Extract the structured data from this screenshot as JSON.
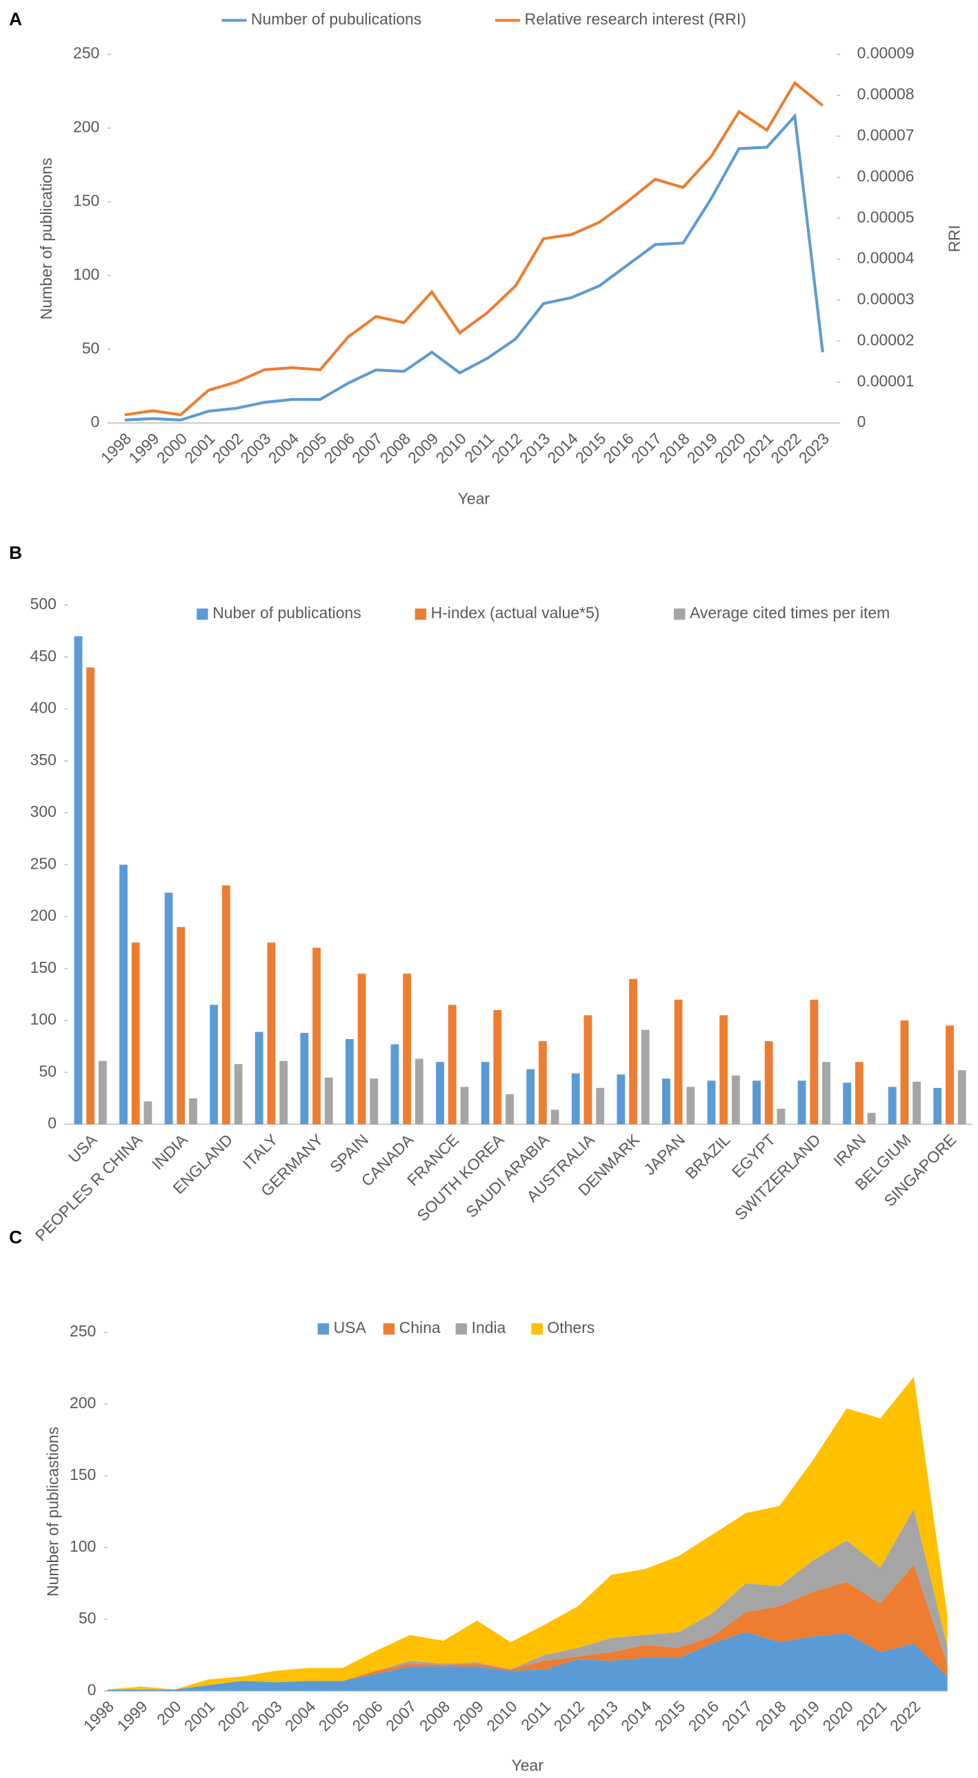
{
  "chart_data": [
    {
      "type": "line",
      "panel": "A",
      "xlabel": "Year",
      "ylabel": "Number of publications",
      "y2label": "RRI",
      "categories": [
        "1998",
        "1999",
        "2000",
        "2001",
        "2002",
        "2003",
        "2004",
        "2005",
        "2006",
        "2007",
        "2008",
        "2009",
        "2010",
        "2011",
        "2012",
        "2013",
        "2014",
        "2015",
        "2016",
        "2017",
        "2018",
        "2019",
        "2020",
        "2021",
        "2022",
        "2023"
      ],
      "series": [
        {
          "name": "Number of pubulications",
          "color": "#5b9bd5",
          "values": [
            2,
            3,
            2,
            8,
            10,
            14,
            16,
            16,
            27,
            36,
            35,
            48,
            34,
            44,
            57,
            81,
            85,
            93,
            107,
            121,
            122,
            152,
            186,
            187,
            208,
            48
          ]
        },
        {
          "name": "Relative research interest (RRI)",
          "color": "#ed7d31",
          "axis": "y2",
          "values": [
            2e-06,
            3e-06,
            2e-06,
            8e-06,
            1e-05,
            1.3e-05,
            1.35e-05,
            1.3e-05,
            2.1e-05,
            2.6e-05,
            2.45e-05,
            3.2e-05,
            2.2e-05,
            2.7e-05,
            3.35e-05,
            4.5e-05,
            4.6e-05,
            4.9e-05,
            5.4e-05,
            5.95e-05,
            5.75e-05,
            6.5e-05,
            7.6e-05,
            7.15e-05,
            8.3e-05,
            7.75e-05
          ]
        }
      ],
      "ylim": [
        0,
        250
      ],
      "yticks": [
        0,
        50,
        100,
        150,
        200,
        250
      ],
      "y2lim": [
        0,
        9e-05
      ],
      "y2ticks": [
        0,
        1e-05,
        2e-05,
        3e-05,
        4e-05,
        5e-05,
        6e-05,
        7e-05,
        8e-05,
        9e-05
      ]
    },
    {
      "type": "bar",
      "panel": "B",
      "categories": [
        "USA",
        "PEOPLES R CHINA",
        "INDIA",
        "ENGLAND",
        "ITALY",
        "GERMANY",
        "SPAIN",
        "CANADA",
        "FRANCE",
        "SOUTH KOREA",
        "SAUDI ARABIA",
        "AUSTRALIA",
        "DENMARK",
        "JAPAN",
        "BRAZIL",
        "EGYPT",
        "SWITZERLAND",
        "IRAN",
        "BELGIUM",
        "SINGAPORE"
      ],
      "series": [
        {
          "name": "Nuber of publications",
          "color": "#5b9bd5",
          "values": [
            470,
            250,
            223,
            115,
            89,
            88,
            82,
            77,
            60,
            60,
            53,
            49,
            48,
            44,
            42,
            42,
            42,
            40,
            36,
            35
          ]
        },
        {
          "name": "H-index (actual value*5)",
          "color": "#ed7d31",
          "values": [
            440,
            175,
            190,
            230,
            175,
            170,
            145,
            145,
            115,
            110,
            80,
            105,
            140,
            120,
            105,
            80,
            120,
            60,
            100,
            95
          ]
        },
        {
          "name": "Average cited times per item",
          "color": "#a5a5a5",
          "values": [
            61,
            22,
            25,
            58,
            61,
            45,
            44,
            63,
            36,
            29,
            14,
            35,
            91,
            36,
            47,
            15,
            60,
            11,
            41,
            52
          ]
        }
      ],
      "ylim": [
        0,
        500
      ],
      "yticks": [
        0,
        50,
        100,
        150,
        200,
        250,
        300,
        350,
        400,
        450,
        500
      ]
    },
    {
      "type": "stacked-area",
      "panel": "C",
      "xlabel": "Year",
      "ylabel": "Number of publicastions",
      "categories": [
        "1998",
        "1999",
        "200",
        "2001",
        "2002",
        "2003",
        "2004",
        "2005",
        "2006",
        "2007",
        "2008",
        "2009",
        "2010",
        "2011",
        "2012",
        "2013",
        "2014",
        "2015",
        "2016",
        "2017",
        "2018",
        "2019",
        "2020",
        "2021",
        "2022",
        null
      ],
      "series": [
        {
          "name": "USA",
          "color": "#5b9bd5",
          "values": [
            1,
            1,
            1,
            4,
            7,
            6,
            7,
            7,
            12,
            17,
            17,
            17,
            14,
            15,
            22,
            21,
            23,
            23,
            33,
            41,
            34,
            38,
            40,
            27,
            33,
            10
          ]
        },
        {
          "name": "China",
          "color": "#ed7d31",
          "values": [
            0,
            0,
            0,
            0,
            0,
            0,
            0,
            0,
            2,
            2,
            1,
            2,
            1,
            6,
            2,
            6,
            9,
            7,
            5,
            14,
            25,
            31,
            36,
            34,
            55,
            8
          ]
        },
        {
          "name": "India",
          "color": "#a5a5a5",
          "values": [
            0,
            0,
            0,
            0,
            0,
            0,
            0,
            0,
            0,
            2,
            1,
            1,
            0,
            4,
            6,
            10,
            7,
            11,
            16,
            20,
            14,
            22,
            29,
            25,
            39,
            12
          ]
        },
        {
          "name": "Others",
          "color": "#ffc000",
          "values": [
            0,
            2,
            0,
            4,
            3,
            8,
            9,
            9,
            14,
            18,
            16,
            29,
            19,
            21,
            29,
            44,
            46,
            53,
            55,
            49,
            56,
            70,
            92,
            104,
            92,
            22
          ]
        }
      ],
      "ylim": [
        0,
        250
      ],
      "yticks": [
        0,
        50,
        100,
        150,
        200,
        250
      ]
    }
  ]
}
